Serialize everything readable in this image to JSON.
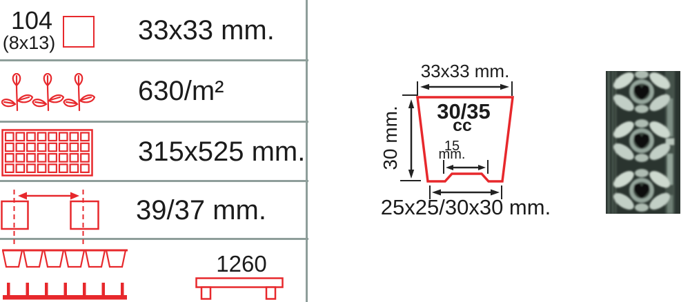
{
  "spec_table": {
    "rows": [
      {
        "name": "cell-count",
        "primary": "104",
        "secondary": "(8x13)",
        "value": "33x33 mm."
      },
      {
        "name": "plant-density",
        "value": "630/m²"
      },
      {
        "name": "tray-size",
        "value": "315x525 mm."
      },
      {
        "name": "cell-spacing",
        "value": "39/37 mm."
      },
      {
        "name": "tray-length",
        "value": "1260"
      }
    ]
  },
  "diagram": {
    "top_width_label": "33x33 mm.",
    "volume_label": "30/35",
    "volume_unit": "cc",
    "height_label": "30 mm.",
    "bottom_inner_width_value": "15",
    "bottom_inner_width_unit": "mm.",
    "bottom_width_label": "25x25/30x30 mm."
  },
  "icons": {
    "cell_top_view": "square-outline",
    "plants": "seedling-sprigs",
    "tray_grid": "tray-top-view",
    "cell_spacing": "two-cells-with-arrow",
    "tray_profile": "tray-cross-section-and-comb",
    "bench": "tray-side-view"
  },
  "colors": {
    "accent_red": "#e7282c",
    "divider_gray": "#8e9e9a",
    "text": "#1b1b1b",
    "photo_bg": "#2a342f"
  }
}
